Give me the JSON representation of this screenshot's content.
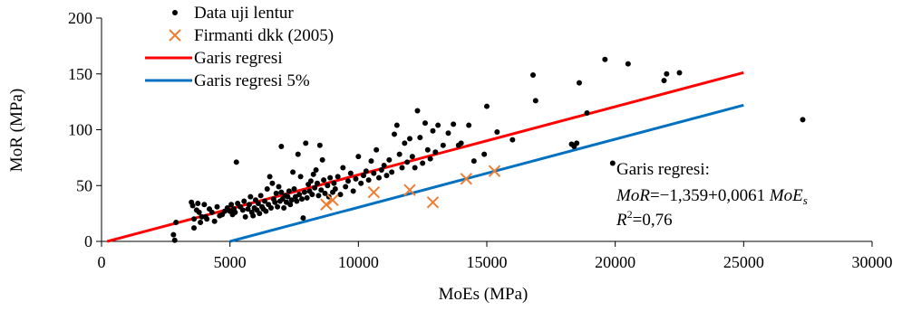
{
  "chart_data": {
    "type": "scatter",
    "xlabel": "MoEs (MPa)",
    "ylabel": "MoR (MPa)",
    "xlim": [
      0,
      30000
    ],
    "ylim": [
      0,
      200
    ],
    "xticks": [
      0,
      5000,
      10000,
      15000,
      20000,
      25000,
      30000
    ],
    "yticks": [
      0,
      50,
      100,
      150,
      200
    ],
    "grid": false,
    "legend_position": "top-left",
    "colors": {
      "data": "#000000",
      "firmanti": "#ED7D31",
      "regression": "#FF0000",
      "regression5": "#0070C0"
    },
    "series": [
      {
        "name": "Data uji lentur",
        "type": "scatter",
        "marker": "dot",
        "points": [
          [
            2800,
            6
          ],
          [
            2850,
            1
          ],
          [
            2900,
            17
          ],
          [
            3500,
            35
          ],
          [
            3550,
            32
          ],
          [
            3600,
            12
          ],
          [
            3600,
            20
          ],
          [
            3700,
            28
          ],
          [
            3750,
            34
          ],
          [
            3800,
            26
          ],
          [
            3850,
            17
          ],
          [
            3900,
            22
          ],
          [
            4000,
            33
          ],
          [
            4050,
            22
          ],
          [
            4100,
            20
          ],
          [
            4200,
            29
          ],
          [
            4300,
            26
          ],
          [
            4400,
            18
          ],
          [
            4500,
            31
          ],
          [
            4600,
            23
          ],
          [
            4700,
            24
          ],
          [
            4800,
            27
          ],
          [
            4900,
            30
          ],
          [
            5000,
            27
          ],
          [
            5050,
            33
          ],
          [
            5100,
            24
          ],
          [
            5150,
            29
          ],
          [
            5200,
            26
          ],
          [
            5250,
            71
          ],
          [
            5300,
            34
          ],
          [
            5400,
            31
          ],
          [
            5500,
            28
          ],
          [
            5550,
            36
          ],
          [
            5600,
            22
          ],
          [
            5700,
            29
          ],
          [
            5750,
            33
          ],
          [
            5800,
            40
          ],
          [
            5850,
            26
          ],
          [
            5900,
            23
          ],
          [
            5950,
            30
          ],
          [
            6000,
            37
          ],
          [
            6050,
            28
          ],
          [
            6100,
            34
          ],
          [
            6150,
            25
          ],
          [
            6200,
            41
          ],
          [
            6250,
            31
          ],
          [
            6300,
            29
          ],
          [
            6350,
            36
          ],
          [
            6400,
            27
          ],
          [
            6450,
            47
          ],
          [
            6500,
            33
          ],
          [
            6550,
            58
          ],
          [
            6600,
            30
          ],
          [
            6650,
            52
          ],
          [
            6700,
            38
          ],
          [
            6750,
            35
          ],
          [
            6800,
            43
          ],
          [
            6850,
            31
          ],
          [
            6900,
            49
          ],
          [
            6950,
            36
          ],
          [
            7000,
            85
          ],
          [
            7000,
            44
          ],
          [
            7050,
            38
          ],
          [
            7100,
            30
          ],
          [
            7150,
            41
          ],
          [
            7200,
            35
          ],
          [
            7250,
            40
          ],
          [
            7300,
            45
          ],
          [
            7350,
            33
          ],
          [
            7400,
            37
          ],
          [
            7450,
            62
          ],
          [
            7500,
            47
          ],
          [
            7550,
            40
          ],
          [
            7600,
            36
          ],
          [
            7650,
            78
          ],
          [
            7700,
            42
          ],
          [
            7750,
            58
          ],
          [
            7800,
            38
          ],
          [
            7850,
            21
          ],
          [
            7900,
            44
          ],
          [
            7950,
            88
          ],
          [
            8000,
            39
          ],
          [
            8050,
            51
          ],
          [
            8100,
            45
          ],
          [
            8150,
            54
          ],
          [
            8200,
            42
          ],
          [
            8250,
            60
          ],
          [
            8300,
            48
          ],
          [
            8350,
            64
          ],
          [
            8400,
            52
          ],
          [
            8450,
            41
          ],
          [
            8500,
            86
          ],
          [
            8550,
            46
          ],
          [
            8600,
            73
          ],
          [
            8650,
            55
          ],
          [
            8700,
            43
          ],
          [
            8800,
            50
          ],
          [
            8850,
            40
          ],
          [
            8900,
            57
          ],
          [
            9000,
            44
          ],
          [
            9050,
            52
          ],
          [
            9100,
            47
          ],
          [
            9200,
            58
          ],
          [
            9300,
            42
          ],
          [
            9400,
            66
          ],
          [
            9500,
            49
          ],
          [
            9600,
            54
          ],
          [
            9700,
            61
          ],
          [
            9800,
            45
          ],
          [
            9900,
            56
          ],
          [
            10000,
            76
          ],
          [
            10100,
            52
          ],
          [
            10200,
            59
          ],
          [
            10300,
            63
          ],
          [
            10400,
            55
          ],
          [
            10500,
            72
          ],
          [
            10600,
            61
          ],
          [
            10700,
            82
          ],
          [
            10800,
            57
          ],
          [
            10900,
            64
          ],
          [
            11000,
            68
          ],
          [
            11100,
            59
          ],
          [
            11200,
            73
          ],
          [
            11300,
            62
          ],
          [
            11400,
            96
          ],
          [
            11500,
            104
          ],
          [
            11600,
            78
          ],
          [
            11700,
            66
          ],
          [
            11800,
            88
          ],
          [
            11900,
            71
          ],
          [
            12000,
            92
          ],
          [
            12100,
            76
          ],
          [
            12200,
            66
          ],
          [
            12300,
            117
          ],
          [
            12400,
            93
          ],
          [
            12500,
            70
          ],
          [
            12600,
            106
          ],
          [
            12700,
            82
          ],
          [
            12800,
            74
          ],
          [
            12900,
            99
          ],
          [
            13000,
            80
          ],
          [
            13100,
            104
          ],
          [
            13300,
            86
          ],
          [
            13500,
            97
          ],
          [
            13700,
            105
          ],
          [
            13900,
            86
          ],
          [
            14000,
            88
          ],
          [
            14300,
            104
          ],
          [
            14500,
            72
          ],
          [
            14900,
            78
          ],
          [
            15000,
            121
          ],
          [
            15400,
            98
          ],
          [
            16000,
            91
          ],
          [
            16800,
            149
          ],
          [
            16900,
            126
          ],
          [
            18300,
            87
          ],
          [
            18400,
            85
          ],
          [
            18500,
            88
          ],
          [
            18600,
            142
          ],
          [
            18900,
            115
          ],
          [
            19600,
            163
          ],
          [
            19900,
            70
          ],
          [
            20500,
            159
          ],
          [
            21900,
            144
          ],
          [
            22000,
            150
          ],
          [
            22500,
            151
          ],
          [
            27300,
            109
          ]
        ]
      },
      {
        "name": "Firmanti dkk (2005)",
        "type": "scatter",
        "marker": "x",
        "points": [
          [
            8750,
            33
          ],
          [
            9000,
            37
          ],
          [
            10600,
            44
          ],
          [
            12000,
            46
          ],
          [
            12900,
            35
          ],
          [
            14200,
            56
          ],
          [
            15300,
            63
          ]
        ]
      },
      {
        "name": "Garis regresi",
        "type": "line",
        "points": [
          [
            223,
            0
          ],
          [
            25000,
            151.14
          ]
        ]
      },
      {
        "name": "Garis regresi 5%",
        "type": "line",
        "points": [
          [
            5000,
            0
          ],
          [
            25000,
            122
          ]
        ]
      }
    ],
    "annotation": {
      "line1": "Garis regresi:",
      "eq_lhs": "MoR",
      "eq_mid": "=−1,359+0,0061 ",
      "eq_var": "MoE",
      "eq_sub": "s",
      "r2_base": "R",
      "r2_sup": "2",
      "r2_val": "=0,76"
    }
  }
}
